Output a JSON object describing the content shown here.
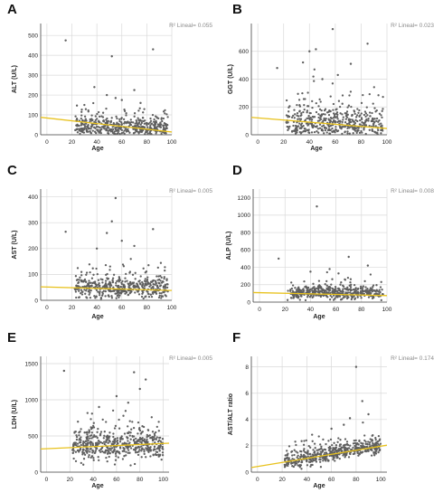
{
  "colors": {
    "points": "#5f5f5f",
    "fit_line": "#e8c21e",
    "grid": "#d9d9d9",
    "axis": "#444444",
    "text": "#222222",
    "r2": "#8a8a8a"
  },
  "chart_data": [
    {
      "type": "scatter",
      "panel": "A",
      "xlabel": "Age",
      "ylabel": "ALT (U/L)",
      "r2_label": "R² Lineal= 0.055",
      "xlim": [
        -5,
        100
      ],
      "ylim": [
        0,
        560
      ],
      "xticks": [
        0,
        20,
        40,
        60,
        80,
        100
      ],
      "yticks": [
        0,
        100,
        200,
        300,
        400,
        500
      ],
      "grid": true,
      "fit": {
        "x": [
          -5,
          100
        ],
        "y": [
          88,
          14
        ]
      },
      "outliers": [
        [
          15,
          475
        ],
        [
          52,
          395
        ],
        [
          85,
          430
        ],
        [
          38,
          240
        ],
        [
          70,
          225
        ],
        [
          48,
          200
        ],
        [
          60,
          175
        ],
        [
          55,
          185
        ],
        [
          30,
          150
        ],
        [
          75,
          160
        ]
      ],
      "cloud": {
        "n": 450,
        "x_range": [
          22,
          97
        ],
        "y_center": 35,
        "y_spread": 45,
        "y_min": 3
      }
    },
    {
      "type": "scatter",
      "panel": "B",
      "xlabel": "Age",
      "ylabel": "GGT (U/L)",
      "r2_label": "R² Lineal= 0.023",
      "xlim": [
        -5,
        100
      ],
      "ylim": [
        0,
        800
      ],
      "xticks": [
        0,
        20,
        40,
        60,
        80,
        100
      ],
      "yticks": [
        0,
        200,
        400,
        600
      ],
      "grid": true,
      "fit": {
        "x": [
          -5,
          100
        ],
        "y": [
          125,
          45
        ]
      },
      "outliers": [
        [
          15,
          480
        ],
        [
          58,
          760
        ],
        [
          45,
          615
        ],
        [
          85,
          655
        ],
        [
          35,
          520
        ],
        [
          72,
          510
        ],
        [
          40,
          600
        ],
        [
          62,
          430
        ],
        [
          50,
          400
        ]
      ],
      "cloud": {
        "n": 450,
        "x_range": [
          22,
          97
        ],
        "y_center": 70,
        "y_spread": 110,
        "y_min": 5
      }
    },
    {
      "type": "scatter",
      "panel": "C",
      "xlabel": "Age",
      "ylabel": "AST (U/L)",
      "r2_label": "R² Lineal= 0.005",
      "xlim": [
        -5,
        100
      ],
      "ylim": [
        0,
        430
      ],
      "xticks": [
        0,
        20,
        40,
        60,
        80,
        100
      ],
      "yticks": [
        0,
        100,
        200,
        300,
        400
      ],
      "grid": true,
      "fit": {
        "x": [
          -5,
          100
        ],
        "y": [
          52,
          38
        ]
      },
      "outliers": [
        [
          15,
          265
        ],
        [
          55,
          395
        ],
        [
          52,
          305
        ],
        [
          85,
          275
        ],
        [
          48,
          260
        ],
        [
          70,
          210
        ],
        [
          60,
          230
        ],
        [
          40,
          200
        ]
      ],
      "cloud": {
        "n": 450,
        "x_range": [
          22,
          97
        ],
        "y_center": 42,
        "y_spread": 40,
        "y_min": 5
      }
    },
    {
      "type": "scatter",
      "panel": "D",
      "xlabel": "Age",
      "ylabel": "ALP (U/L)",
      "r2_label": "R² Lineal= 0.008",
      "xlim": [
        -5,
        100
      ],
      "ylim": [
        0,
        1300
      ],
      "xticks": [
        0,
        20,
        40,
        60,
        80,
        100
      ],
      "yticks": [
        0,
        200,
        400,
        600,
        800,
        1000,
        1200
      ],
      "grid": true,
      "fit": {
        "x": [
          -5,
          100
        ],
        "y": [
          110,
          75
        ]
      },
      "outliers": [
        [
          15,
          500
        ],
        [
          45,
          1100
        ],
        [
          70,
          520
        ],
        [
          85,
          420
        ],
        [
          55,
          380
        ],
        [
          40,
          350
        ],
        [
          62,
          330
        ]
      ],
      "cloud": {
        "n": 450,
        "x_range": [
          22,
          97
        ],
        "y_center": 95,
        "y_spread": 70,
        "y_min": 20
      }
    },
    {
      "type": "scatter",
      "panel": "E",
      "xlabel": "Age",
      "ylabel": "LDH (U/L)",
      "r2_label": "R² Lineal= 0.005",
      "xlim": [
        -5,
        105
      ],
      "ylim": [
        0,
        1600
      ],
      "xticks": [
        0,
        20,
        40,
        60,
        80,
        100
      ],
      "yticks": [
        0,
        500,
        1000,
        1500
      ],
      "grid": true,
      "fit": {
        "x": [
          -5,
          105
        ],
        "y": [
          320,
          400
        ]
      },
      "outliers": [
        [
          15,
          1400
        ],
        [
          75,
          1380
        ],
        [
          85,
          1280
        ],
        [
          80,
          1150
        ],
        [
          60,
          1050
        ],
        [
          45,
          900
        ],
        [
          70,
          960
        ]
      ],
      "cloud": {
        "n": 500,
        "x_range": [
          22,
          100
        ],
        "y_center": 340,
        "y_spread": 200,
        "y_min": 80
      }
    },
    {
      "type": "scatter",
      "panel": "F",
      "xlabel": "Age",
      "ylabel": "AST/ALT ratio",
      "r2_label": "R² Lineal= 0.174",
      "xlim": [
        -5,
        105
      ],
      "ylim": [
        0,
        8.8
      ],
      "xticks": [
        0,
        20,
        40,
        60,
        80,
        100
      ],
      "yticks": [
        0,
        2,
        4,
        6,
        8
      ],
      "grid": true,
      "fit": {
        "x": [
          -5,
          105
        ],
        "y": [
          0.35,
          2.05
        ]
      },
      "outliers": [
        [
          80,
          8.0
        ],
        [
          85,
          5.4
        ],
        [
          90,
          4.4
        ],
        [
          75,
          4.1
        ],
        [
          70,
          3.6
        ],
        [
          60,
          3.3
        ]
      ],
      "cloud": {
        "n": 500,
        "x_range": [
          22,
          100
        ],
        "trend": [
          0.35,
          0.0155
        ],
        "y_spread": 0.6,
        "y_min": 0.15
      }
    }
  ]
}
